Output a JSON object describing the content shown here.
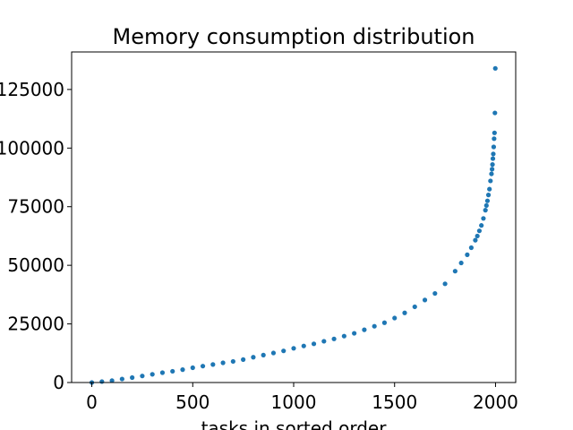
{
  "chart_data": {
    "type": "scatter",
    "title": "Memory consumption distribution",
    "xlabel": "tasks in sorted order",
    "ylabel": "",
    "xlim": [
      -100,
      2100
    ],
    "ylim": [
      0,
      141000
    ],
    "xticks": [
      0,
      500,
      1000,
      1500,
      2000
    ],
    "yticks": [
      0,
      25000,
      50000,
      75000,
      100000,
      125000
    ],
    "xtick_labels": [
      "0",
      "500",
      "1000",
      "1500",
      "2000"
    ],
    "ytick_labels": [
      "0",
      "25000",
      "50000",
      "75000",
      "100000",
      "125000"
    ],
    "grid": false,
    "legend": "none",
    "marker_color": "#1f77b4",
    "series": [
      {
        "x": [
          0,
          50,
          100,
          150,
          200,
          250,
          300,
          350,
          400,
          450,
          500,
          550,
          600,
          650,
          700,
          750,
          800,
          850,
          900,
          950,
          1000,
          1050,
          1100,
          1150,
          1200,
          1250,
          1300,
          1350,
          1400,
          1450,
          1500,
          1550,
          1600,
          1650,
          1700,
          1750,
          1800,
          1830,
          1860,
          1880,
          1900,
          1910,
          1920,
          1930,
          1940,
          1950,
          1955,
          1960,
          1965,
          1970,
          1975,
          1980,
          1983,
          1985,
          1987,
          1989,
          1991,
          1993,
          1995,
          1997,
          1999
        ],
        "y": [
          0,
          400,
          800,
          1500,
          2100,
          2800,
          3500,
          4200,
          4800,
          5500,
          6300,
          7000,
          7700,
          8400,
          9000,
          9800,
          10800,
          11700,
          12600,
          13500,
          14600,
          15600,
          16500,
          17600,
          18600,
          19800,
          21000,
          22500,
          24000,
          25500,
          27500,
          29700,
          32300,
          35200,
          38000,
          42100,
          47500,
          51000,
          54500,
          57500,
          60700,
          62500,
          64700,
          67000,
          70000,
          73500,
          75500,
          77500,
          80000,
          82500,
          86000,
          89000,
          91000,
          93000,
          95500,
          97500,
          100500,
          104000,
          106500,
          115000,
          134000
        ]
      }
    ]
  }
}
